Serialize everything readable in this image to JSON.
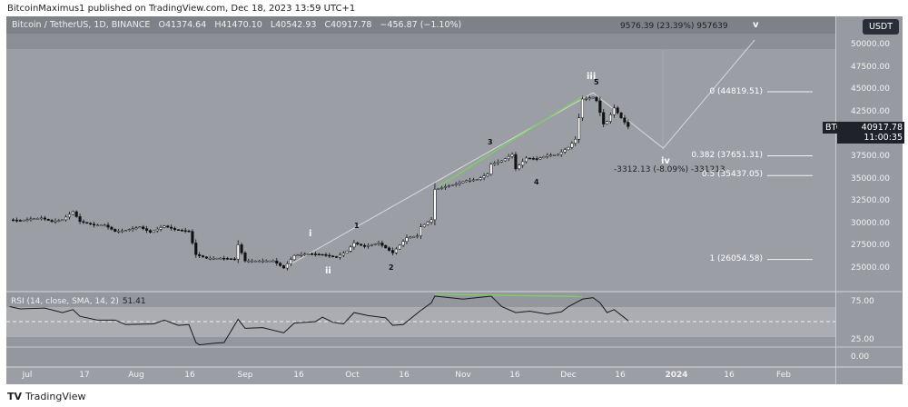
{
  "publisher_line": "BitcoinMaximus1 published on TradingView.com, Dec 18, 2023 13:59 UTC+1",
  "header": {
    "symbol": "Bitcoin / TetherUS, 1D, BINANCE",
    "open": "O41374.64",
    "high": "H41470.10",
    "low": "L40542.93",
    "close": "C40917.78",
    "change": "−456.87 (−1.10%)"
  },
  "currency": "USDT",
  "last_price": {
    "symbol": "BTCUSDT",
    "price": "40917.78",
    "countdown": "11:00:35"
  },
  "measure_up": "9576.39 (23.39%) 957639",
  "measure_down": "-3312.13 (-8.09%) -331213",
  "fib_levels": [
    {
      "label": "0 (44819.51)",
      "value": 44819.51
    },
    {
      "label": "0.382 (37651.31)",
      "value": 37651.31
    },
    {
      "label": "0.5 (35437.05)",
      "value": 35437.05
    },
    {
      "label": "1 (26054.58)",
      "value": 26054.58
    }
  ],
  "waves": {
    "i": "i",
    "ii": "ii",
    "one": "1",
    "two": "2",
    "three": "3",
    "four": "4",
    "iii": "iii",
    "five": "5",
    "iv": "iv",
    "v": "v"
  },
  "rsi": {
    "label": "RSI (14, close, SMA, 14, 2)",
    "value": "51.41"
  },
  "brand": "TradingView",
  "colors": {
    "up": "#ffffff",
    "down": "#111111",
    "divergence": "#7ecb6a",
    "wave_path": "#d8d8d8"
  },
  "chart_data": {
    "type": "candlestick",
    "title": "Bitcoin / TetherUS, 1D, BINANCE",
    "ylim": [
      23500,
      52000
    ],
    "y_ticks": [
      "50000.00",
      "47500.00",
      "45000.00",
      "42500.00",
      "37500.00",
      "35000.00",
      "32500.00",
      "30000.00",
      "27500.00",
      "25000.00"
    ],
    "x_ticks": [
      "Jul",
      "17",
      "Aug",
      "16",
      "Sep",
      "16",
      "Oct",
      "16",
      "Nov",
      "16",
      "Dec",
      "16",
      "2024",
      "16",
      "Feb"
    ],
    "close": [
      [
        "2023-06-25",
        30500
      ],
      [
        "2023-06-28",
        30400
      ],
      [
        "2023-07-01",
        30600
      ],
      [
        "2023-07-04",
        30700
      ],
      [
        "2023-07-07",
        30300
      ],
      [
        "2023-07-10",
        30500
      ],
      [
        "2023-07-13",
        31400
      ],
      [
        "2023-07-15",
        30300
      ],
      [
        "2023-07-19",
        29900
      ],
      [
        "2023-07-22",
        29900
      ],
      [
        "2023-07-25",
        29200
      ],
      [
        "2023-07-28",
        29300
      ],
      [
        "2023-08-01",
        29700
      ],
      [
        "2023-08-04",
        29100
      ],
      [
        "2023-08-08",
        29800
      ],
      [
        "2023-08-11",
        29400
      ],
      [
        "2023-08-15",
        29200
      ],
      [
        "2023-08-17",
        26600
      ],
      [
        "2023-08-20",
        26200
      ],
      [
        "2023-08-24",
        26200
      ],
      [
        "2023-08-28",
        26100
      ],
      [
        "2023-08-29",
        27700
      ],
      [
        "2023-08-31",
        25900
      ],
      [
        "2023-09-04",
        25900
      ],
      [
        "2023-09-08",
        25900
      ],
      [
        "2023-09-11",
        25100
      ],
      [
        "2023-09-14",
        26500
      ],
      [
        "2023-09-18",
        26700
      ],
      [
        "2023-09-22",
        26600
      ],
      [
        "2023-09-26",
        26300
      ],
      [
        "2023-09-29",
        27000
      ],
      [
        "2023-10-01",
        27900
      ],
      [
        "2023-10-04",
        27500
      ],
      [
        "2023-10-08",
        27900
      ],
      [
        "2023-10-12",
        26800
      ],
      [
        "2023-10-16",
        28500
      ],
      [
        "2023-10-19",
        28700
      ],
      [
        "2023-10-20",
        29700
      ],
      [
        "2023-10-23",
        30500
      ],
      [
        "2023-10-24",
        33900
      ],
      [
        "2023-10-26",
        34100
      ],
      [
        "2023-10-30",
        34500
      ],
      [
        "2023-11-02",
        34900
      ],
      [
        "2023-11-05",
        35000
      ],
      [
        "2023-11-08",
        35600
      ],
      [
        "2023-11-09",
        36700
      ],
      [
        "2023-11-12",
        37100
      ],
      [
        "2023-11-15",
        37800
      ],
      [
        "2023-11-16",
        36200
      ],
      [
        "2023-11-19",
        37400
      ],
      [
        "2023-11-22",
        37300
      ],
      [
        "2023-11-25",
        37700
      ],
      [
        "2023-11-28",
        37800
      ],
      [
        "2023-12-01",
        38600
      ],
      [
        "2023-12-03",
        39500
      ],
      [
        "2023-12-04",
        41900
      ],
      [
        "2023-12-05",
        44000
      ],
      [
        "2023-12-08",
        44200
      ],
      [
        "2023-12-09",
        43800
      ],
      [
        "2023-12-11",
        41200
      ],
      [
        "2023-12-12",
        41500
      ],
      [
        "2023-12-14",
        43000
      ],
      [
        "2023-12-16",
        41900
      ],
      [
        "2023-12-18",
        40917.78
      ]
    ],
    "wave_path": [
      [
        "2023-09-11",
        25100
      ],
      [
        "2023-12-08",
        44700
      ],
      [
        "2023-12-28",
        38500
      ],
      [
        "2024-01-23",
        50600
      ]
    ],
    "price_divergence": [
      [
        "2023-10-25",
        34200
      ],
      [
        "2023-12-05",
        44300
      ]
    ],
    "rsi": {
      "ylim": [
        0,
        100
      ],
      "y_ticks": [
        "75.00",
        "25.00",
        "0.00"
      ],
      "bands": [
        30,
        50,
        70
      ],
      "values": [
        [
          "2023-06-25",
          70
        ],
        [
          "2023-06-28",
          67
        ],
        [
          "2023-07-05",
          68
        ],
        [
          "2023-07-10",
          62
        ],
        [
          "2023-07-13",
          66
        ],
        [
          "2023-07-15",
          57
        ],
        [
          "2023-07-20",
          52
        ],
        [
          "2023-07-25",
          52
        ],
        [
          "2023-07-28",
          46
        ],
        [
          "2023-08-05",
          47
        ],
        [
          "2023-08-08",
          52
        ],
        [
          "2023-08-12",
          45
        ],
        [
          "2023-08-15",
          46
        ],
        [
          "2023-08-17",
          22
        ],
        [
          "2023-08-18",
          19
        ],
        [
          "2023-08-22",
          21
        ],
        [
          "2023-08-25",
          22
        ],
        [
          "2023-08-29",
          53
        ],
        [
          "2023-08-31",
          41
        ],
        [
          "2023-09-05",
          42
        ],
        [
          "2023-09-11",
          35
        ],
        [
          "2023-09-14",
          48
        ],
        [
          "2023-09-20",
          50
        ],
        [
          "2023-09-22",
          56
        ],
        [
          "2023-09-25",
          49
        ],
        [
          "2023-09-28",
          47
        ],
        [
          "2023-10-01",
          62
        ],
        [
          "2023-10-05",
          58
        ],
        [
          "2023-10-10",
          55
        ],
        [
          "2023-10-12",
          45
        ],
        [
          "2023-10-15",
          46
        ],
        [
          "2023-10-20",
          65
        ],
        [
          "2023-10-23",
          75
        ],
        [
          "2023-10-24",
          84
        ],
        [
          "2023-10-26",
          83
        ],
        [
          "2023-11-01",
          80
        ],
        [
          "2023-11-05",
          82
        ],
        [
          "2023-11-09",
          84
        ],
        [
          "2023-11-12",
          70
        ],
        [
          "2023-11-16",
          62
        ],
        [
          "2023-11-20",
          64
        ],
        [
          "2023-11-25",
          60
        ],
        [
          "2023-11-29",
          63
        ],
        [
          "2023-12-01",
          70
        ],
        [
          "2023-12-05",
          80
        ],
        [
          "2023-12-08",
          82
        ],
        [
          "2023-12-10",
          75
        ],
        [
          "2023-12-12",
          62
        ],
        [
          "2023-12-14",
          66
        ],
        [
          "2023-12-18",
          51.41
        ]
      ],
      "divergence": [
        [
          "2023-10-24",
          84
        ],
        [
          "2023-12-05",
          81
        ]
      ]
    }
  }
}
